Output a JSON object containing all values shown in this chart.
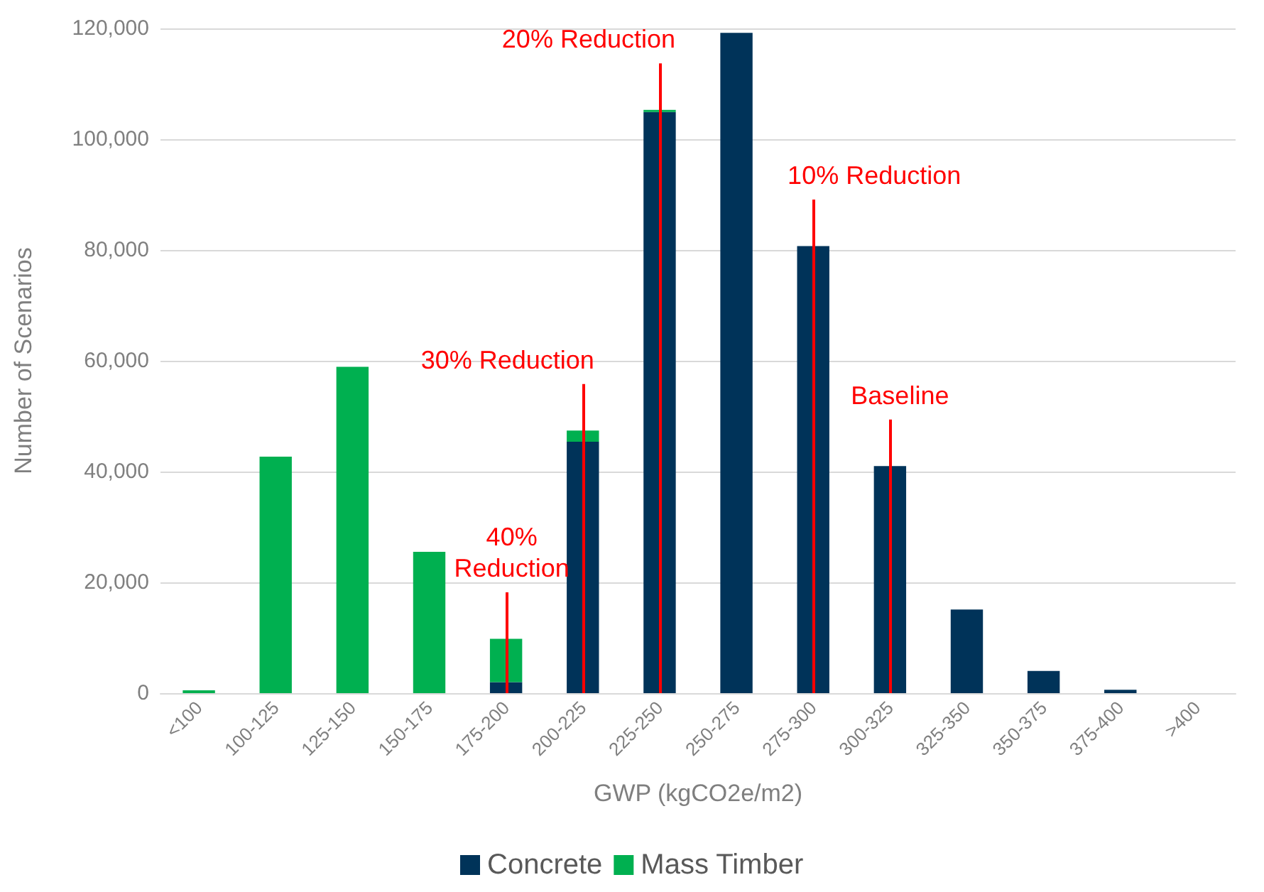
{
  "chart_data": {
    "type": "bar",
    "xlabel": "GWP (kgCO2e/m2)",
    "ylabel": "Number of Scenarios",
    "categories": [
      "<100",
      "100-125",
      "125-150",
      "150-175",
      "175-200",
      "200-225",
      "225-250",
      "250-275",
      "275-300",
      "300-325",
      "325-350",
      "350-375",
      "375-400",
      ">400"
    ],
    "stacked": true,
    "series": [
      {
        "name": "Concrete",
        "color": "#003359",
        "values": [
          0,
          0,
          0,
          0,
          2000,
          45400,
          104900,
          119200,
          80700,
          41000,
          15100,
          4000,
          600,
          0
        ]
      },
      {
        "name": "Mass Timber",
        "color": "#00b050",
        "values": [
          500,
          42700,
          58900,
          25500,
          7800,
          2000,
          400,
          0,
          0,
          0,
          0,
          0,
          0,
          0
        ]
      }
    ],
    "ylim": [
      0,
      120000
    ],
    "yticks": [
      0,
      {
        "value": 20000,
        "label": "20,000"
      },
      {
        "value": 40000,
        "label": "40,000"
      },
      {
        "value": 60000,
        "label": "60,000"
      },
      {
        "value": 80000,
        "label": "80,000"
      },
      {
        "value": 100000,
        "label": "100,000"
      },
      {
        "value": 120000,
        "label": "120,000"
      }
    ],
    "ref_lines": [
      {
        "axis": "x",
        "value": "175-200",
        "label": "40%\nReduction",
        "color": "#ff0000"
      },
      {
        "axis": "x",
        "value": "200-225",
        "label": "30% Reduction",
        "color": "#ff0000"
      },
      {
        "axis": "x",
        "value": "225-250",
        "label": "20% Reduction",
        "color": "#ff0000"
      },
      {
        "axis": "x",
        "value": "275-300",
        "label": "10% Reduction",
        "color": "#ff0000"
      },
      {
        "axis": "x",
        "value": "300-325",
        "label": "Baseline",
        "color": "#ff0000"
      }
    ],
    "grid": "y",
    "legend": "bottom"
  }
}
